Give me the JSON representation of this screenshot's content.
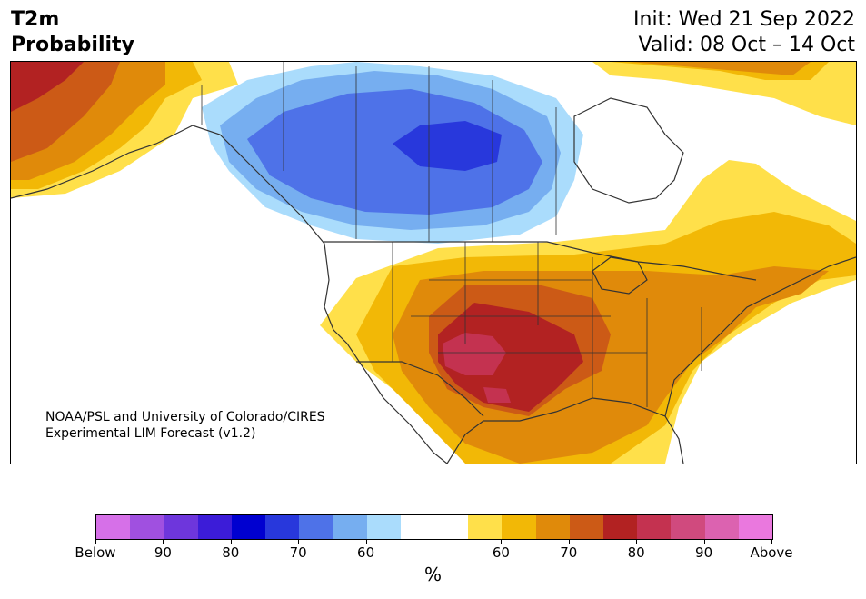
{
  "title": {
    "line1": "T2m",
    "line2": "Probability"
  },
  "dates": {
    "init": "Init: Wed 21 Sep 2022",
    "valid": "Valid: 08 Oct – 14 Oct"
  },
  "credit": {
    "line1": "NOAA/PSL and University of Colorado/CIRES",
    "line2": "Experimental LIM Forecast (v1.2)"
  },
  "colorbar": {
    "colors": [
      "#d670e8",
      "#a050e0",
      "#6e36dc",
      "#3c1cd8",
      "#0000d0",
      "#2838dc",
      "#4e72e8",
      "#76aef0",
      "#aadcfc",
      "#ffffff",
      "#ffffff",
      "#ffe04a",
      "#f2b806",
      "#e08a0a",
      "#cc5a16",
      "#b22222",
      "#c43250",
      "#d04a7e",
      "#dc62b0",
      "#ea78de"
    ],
    "labels": [
      "Below",
      "90",
      "80",
      "70",
      "60",
      "60",
      "70",
      "80",
      "90",
      "Above"
    ],
    "unit": "%"
  },
  "map": {
    "colors": {
      "cold_light": "#aadcfc",
      "cold_mid": "#76aef0",
      "cold_strong": "#4e72e8",
      "cold_core": "#2838dc",
      "warm_light": "#ffe04a",
      "warm_mid": "#f2b806",
      "warm_orange": "#e08a0a",
      "warm_strong": "#cc5a16",
      "warm_red": "#b22222",
      "warm_core": "#c43250",
      "border": "#333333"
    }
  }
}
